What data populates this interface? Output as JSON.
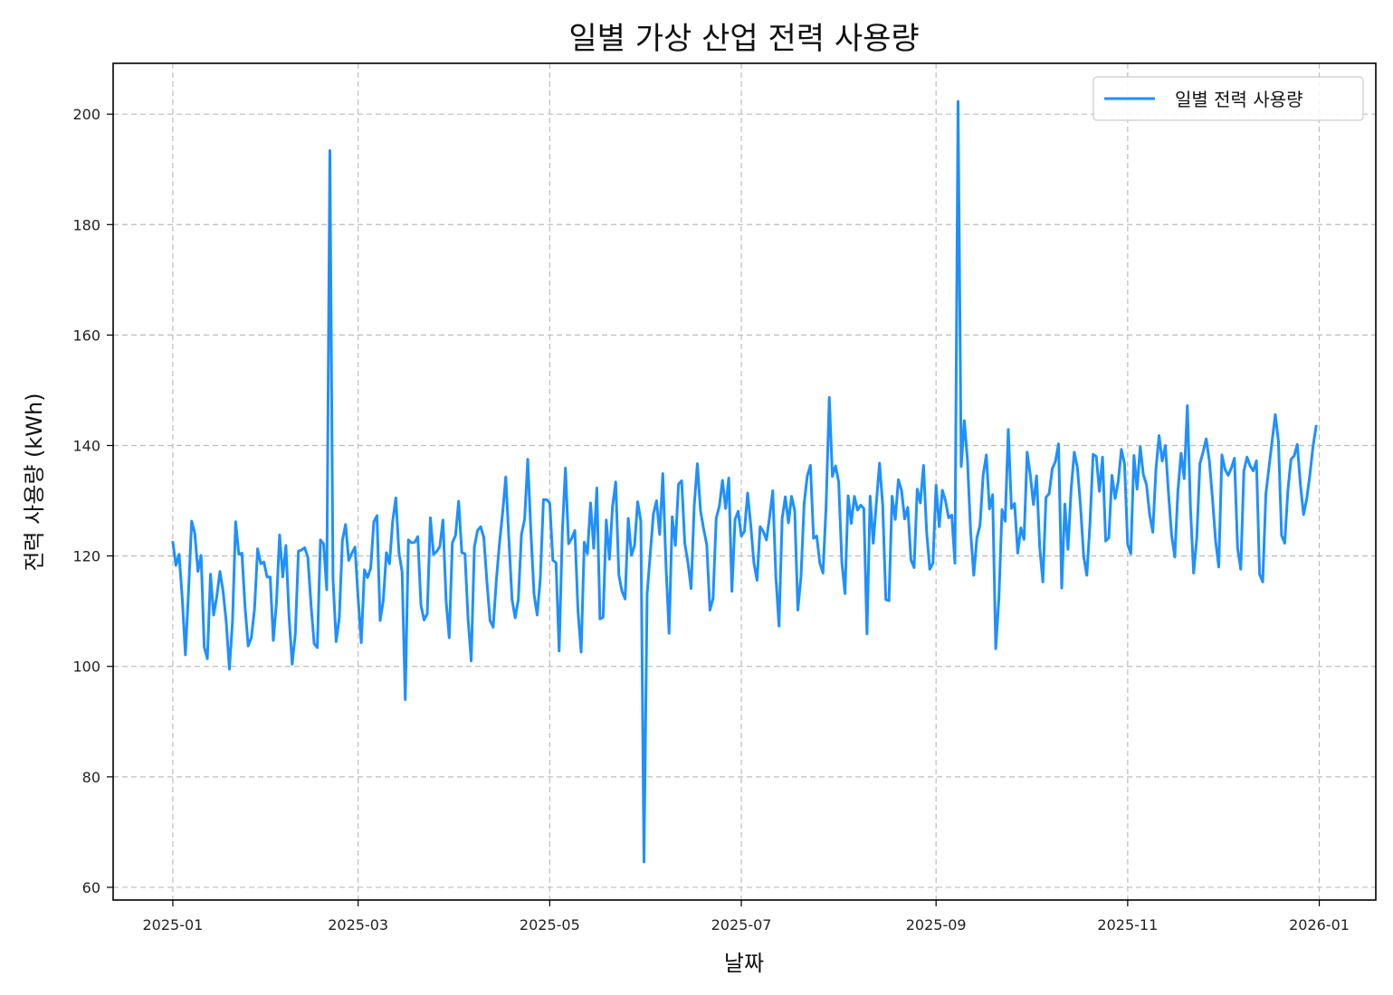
{
  "chart_data": {
    "type": "line",
    "title": "일별 가상 산업 전력 사용량",
    "xlabel": "날짜",
    "ylabel": "전력 사용량 (kWh)",
    "x_start": "2025-01-01",
    "x_end": "2025-12-31",
    "xlim": [
      "2024-12-13",
      "2026-01-19"
    ],
    "ylim": [
      57.7,
      209.2
    ],
    "x_ticks": [
      "2025-01",
      "2025-03",
      "2025-05",
      "2025-07",
      "2025-09",
      "2025-11",
      "2026-01"
    ],
    "y_ticks": [
      "60",
      "80",
      "100",
      "120",
      "140",
      "160",
      "180",
      "200"
    ],
    "grid": true,
    "legend_position": "top-right",
    "series": [
      {
        "name": "일별 전력 사용량",
        "color": "#1E90FF",
        "values": [
          122.5,
          118.3,
          120.3,
          112.4,
          102.1,
          113.5,
          126.3,
          124.1,
          117.2,
          120.1,
          103.5,
          101.4,
          116.7,
          109.3,
          112.6,
          117.2,
          113.6,
          108.1,
          99.5,
          108.1,
          126.2,
          120.3,
          120.5,
          110.7,
          103.7,
          105.2,
          110.3,
          121.3,
          118.6,
          118.9,
          116.2,
          116.2,
          104.7,
          111.6,
          123.8,
          116.2,
          121.9,
          109.1,
          100.4,
          105.9,
          120.9,
          121.1,
          121.5,
          119.7,
          111.2,
          104.1,
          103.4,
          122.9,
          122.2,
          113.9,
          193.4,
          115.8,
          104.5,
          108.8,
          122.9,
          125.7,
          119.2,
          120.5,
          121.6,
          112.3,
          104.3,
          117.5,
          116.1,
          117.8,
          126.2,
          127.3,
          108.3,
          111.9,
          120.6,
          118.6,
          126.3,
          130.5,
          120.6,
          117.1,
          94.0,
          122.9,
          122.4,
          122.5,
          123.5,
          111.1,
          108.4,
          109.5,
          126.9,
          120.3,
          120.8,
          121.7,
          126.5,
          111.9,
          105.2,
          122.4,
          123.7,
          129.9,
          120.6,
          120.4,
          108.6,
          101.0,
          121.6,
          124.6,
          125.3,
          123.4,
          115.3,
          108.3,
          107.1,
          115.6,
          122.3,
          127.8,
          134.3,
          123.0,
          112.1,
          108.8,
          112.1,
          123.9,
          126.6,
          137.5,
          124.4,
          113.1,
          109.3,
          115.9,
          130.2,
          130.2,
          129.6,
          119.2,
          118.8,
          102.8,
          124.2,
          135.9,
          122.2,
          123.2,
          124.6,
          110.0,
          102.6,
          122.5,
          120.4,
          129.6,
          121.4,
          132.3,
          108.6,
          108.9,
          126.5,
          119.4,
          129.0,
          133.4,
          116.6,
          113.6,
          112.2,
          126.8,
          120.1,
          121.9,
          129.8,
          126.3,
          64.6,
          113.1,
          120.4,
          127.6,
          130.0,
          123.9,
          134.9,
          118.4,
          106.0,
          127.1,
          121.9,
          133.0,
          133.6,
          122.3,
          118.8,
          114.1,
          129.0,
          136.7,
          128.2,
          124.9,
          122.0,
          110.2,
          112.3,
          126.8,
          129.0,
          133.7,
          128.6,
          134.1,
          113.6,
          126.6,
          128.1,
          123.6,
          124.5,
          131.4,
          125.6,
          118.8,
          115.6,
          125.3,
          124.4,
          122.9,
          127.1,
          131.8,
          116.2,
          107.3,
          126.8,
          130.7,
          126.0,
          130.8,
          128.2,
          110.2,
          116.3,
          129.5,
          134.5,
          136.4,
          123.2,
          123.6,
          118.7,
          116.9,
          129.2,
          148.7,
          134.4,
          136.3,
          133.4,
          118.9,
          113.2,
          130.9,
          125.9,
          130.8,
          128.3,
          129.2,
          128.6,
          105.9,
          130.8,
          122.3,
          129.7,
          136.8,
          129.3,
          112.1,
          111.9,
          130.8,
          126.6,
          133.8,
          131.9,
          126.7,
          128.8,
          119.3,
          117.9,
          132.1,
          129.6,
          136.4,
          124.3,
          117.6,
          118.7,
          132.8,
          125.3,
          131.9,
          130.0,
          126.9,
          127.4,
          118.7,
          202.3,
          136.2,
          144.5,
          137.3,
          124.4,
          116.5,
          123.3,
          125.6,
          134.7,
          138.3,
          128.5,
          131.1,
          103.2,
          112.3,
          128.4,
          126.3,
          142.9,
          128.6,
          129.5,
          120.5,
          125.1,
          123.0,
          138.8,
          134.7,
          129.3,
          134.5,
          121.6,
          115.3,
          130.6,
          131.3,
          135.8,
          137.1,
          140.3,
          114.2,
          129.4,
          121.2,
          132.1,
          138.8,
          136.0,
          128.9,
          119.9,
          116.5,
          125.9,
          138.4,
          138.0,
          131.7,
          137.9,
          122.7,
          123.3,
          134.6,
          130.4,
          133.5,
          139.3,
          136.7,
          122.1,
          120.4,
          138.2,
          132.1,
          139.8,
          134.7,
          132.9,
          127.5,
          124.3,
          135.7,
          141.8,
          137.2,
          140.0,
          131.4,
          123.7,
          119.8,
          131.8,
          138.6,
          134.0,
          147.2,
          128.6,
          116.9,
          123.2,
          136.7,
          138.8,
          141.2,
          137.3,
          130.4,
          122.7,
          118.0,
          138.3,
          135.7,
          134.6,
          135.9,
          137.7,
          121.4,
          117.6,
          135.4,
          137.9,
          136.3,
          135.4,
          137.2,
          116.7,
          115.3,
          131.2,
          136.1,
          140.9,
          145.6,
          140.8,
          123.7,
          122.3,
          131.8,
          137.5,
          138.1,
          140.2,
          132.9,
          127.5,
          130.3,
          134.6,
          139.8,
          143.5
        ]
      }
    ]
  }
}
